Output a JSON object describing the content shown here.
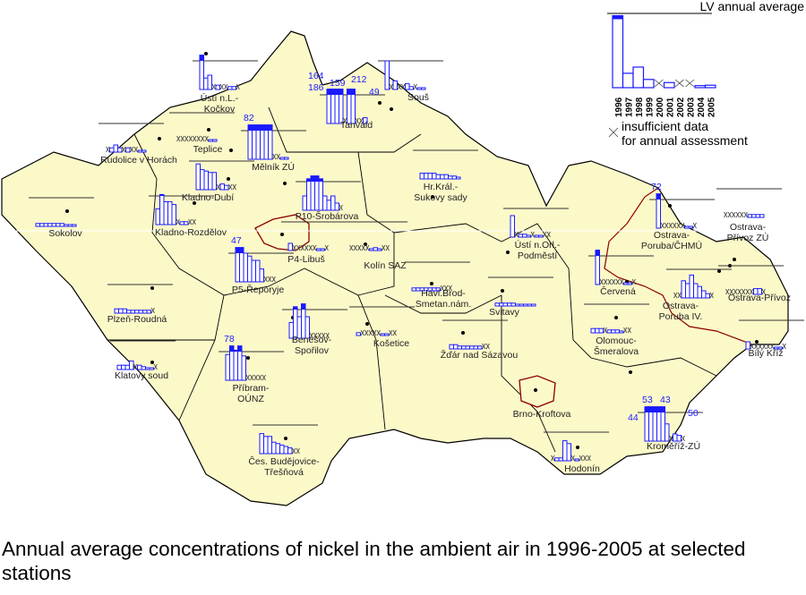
{
  "legend": {
    "lv_label": "LV annual average",
    "years": [
      "1996",
      "1997",
      "1998",
      "1999",
      "2000",
      "2001",
      "2002",
      "2003",
      "2004",
      "2005"
    ],
    "sample_values": [
      35,
      7,
      10,
      4,
      null,
      2.5,
      null,
      null,
      1,
      1.2
    ],
    "insufficient_label_1": "insufficient data",
    "insufficient_label_2": "for annual assessment"
  },
  "colors": {
    "land": "#fcf9c9",
    "bars": "#1a1aff",
    "border": "#000000",
    "city_border": "#8b0000"
  },
  "stations": [
    {
      "name": [
        "Ústí n.L.-",
        "Kočkov"
      ],
      "values": [
        26,
        8,
        10,
        null,
        3,
        null,
        null,
        2,
        2,
        null
      ],
      "labels": []
    },
    {
      "name": [
        "Rudolice v Horách"
      ],
      "values": [
        null,
        3,
        5,
        3,
        null,
        3,
        null,
        null,
        1,
        1
      ],
      "labels": []
    },
    {
      "name": [
        "Teplice"
      ],
      "values": [
        null,
        null,
        null,
        null,
        null,
        null,
        null,
        null,
        1,
        1
      ],
      "labels": []
    },
    {
      "name": [
        "Mělník ZÚ"
      ],
      "values": [
        82,
        24,
        27,
        40,
        40,
        25,
        null,
        null,
        1,
        1
      ],
      "labels": [
        "82"
      ]
    },
    {
      "name": [
        "Tanvald"
      ],
      "values": [
        164,
        186,
        159,
        28,
        null,
        212,
        49,
        null,
        null,
        4
      ],
      "labels": [
        "164",
        "186",
        "159",
        "212",
        "49"
      ]
    },
    {
      "name": [
        "Souš"
      ],
      "values": [
        20,
        null,
        6,
        null,
        null,
        4,
        2,
        null,
        1,
        1
      ],
      "labels": []
    },
    {
      "name": [
        "Kladno-Dubí"
      ],
      "values": [
        18,
        14,
        13,
        12,
        12,
        null,
        4,
        3,
        null,
        null
      ],
      "labels": []
    },
    {
      "name": [
        "Kladno-Rozdělov"
      ],
      "values": [
        11,
        21,
        16,
        16,
        14,
        null,
        2,
        2,
        null,
        null
      ],
      "labels": []
    },
    {
      "name": [
        "Sokolov"
      ],
      "values": [
        2,
        2,
        2,
        2,
        2,
        2,
        2,
        1,
        1,
        1
      ],
      "labels": []
    },
    {
      "name": [
        "P10-Šrobárova"
      ],
      "values": [
        10,
        22,
        27,
        38,
        22,
        10,
        7,
        10,
        5,
        null
      ],
      "labels": []
    },
    {
      "name": [
        "P5-Řeporyje"
      ],
      "values": [
        47,
        33,
        20,
        18,
        15,
        15,
        9,
        null,
        null,
        null
      ],
      "labels": [
        "47"
      ]
    },
    {
      "name": [
        "P4-Libuš"
      ],
      "values": [
        5,
        null,
        null,
        null,
        null,
        null,
        null,
        1,
        1,
        null
      ],
      "labels": []
    },
    {
      "name": [
        "Kolín SAZ"
      ],
      "values": [
        null,
        null,
        null,
        null,
        null,
        1,
        2,
        1,
        null,
        null
      ],
      "labels": []
    },
    {
      "name": [
        "Hr.Král.-",
        "Sukovy sady"
      ],
      "values": [
        4,
        4,
        4,
        4,
        3,
        3,
        3,
        2,
        2,
        1
      ],
      "labels": []
    },
    {
      "name": [
        "Ústí n.Orl.-",
        "Podměstí"
      ],
      "values": [
        15,
        null,
        2,
        2,
        1,
        null,
        1,
        1,
        null,
        null
      ],
      "labels": []
    },
    {
      "name": [
        "Plzeň-Roudná"
      ],
      "values": [
        3,
        3,
        3,
        2,
        2,
        2,
        2,
        2,
        2,
        null
      ],
      "labels": []
    },
    {
      "name": [
        "Klatovy soud"
      ],
      "values": [
        3,
        3,
        3,
        6,
        null,
        3,
        2,
        1,
        1,
        null
      ],
      "labels": []
    },
    {
      "name": [
        "Příbram-",
        "OÚNZ"
      ],
      "values": [
        18,
        78,
        21,
        24,
        17,
        null,
        null,
        null,
        null,
        null
      ],
      "labels": [
        "78"
      ]
    },
    {
      "name": [
        "Benešov-",
        "Spořilov"
      ],
      "values": [
        11,
        22,
        15,
        26,
        15,
        null,
        null,
        null,
        null,
        null
      ],
      "labels": []
    },
    {
      "name": [
        "Košetice"
      ],
      "values": [
        2,
        null,
        null,
        null,
        null,
        null,
        1,
        1,
        null,
        null
      ],
      "labels": []
    },
    {
      "name": [
        "Havl.Brod-",
        "Smetan.nám."
      ],
      "values": [
        2,
        2,
        2,
        2,
        2,
        2,
        2,
        null,
        null,
        null
      ],
      "labels": []
    },
    {
      "name": [
        "Svitavy"
      ],
      "values": [
        2,
        2,
        2,
        2,
        2,
        1,
        1,
        1,
        1,
        1
      ],
      "labels": []
    },
    {
      "name": [
        "Žďár nad Sázavou"
      ],
      "values": [
        3,
        3,
        2,
        2,
        2,
        2,
        2,
        2,
        null,
        null
      ],
      "labels": []
    },
    {
      "name": [
        "Čes. Budějovice-",
        "Třešňová"
      ],
      "values": [
        14,
        12,
        12,
        8,
        7,
        6,
        5,
        4,
        null,
        null
      ],
      "labels": []
    },
    {
      "name": [
        "Brno-Kroftova"
      ],
      "values": [],
      "labels": []
    },
    {
      "name": [
        "Hodonín"
      ],
      "values": [
        null,
        2,
        2,
        14,
        12,
        null,
        1,
        null,
        null,
        null
      ],
      "labels": []
    },
    {
      "name": [
        "Kroměříž-ZÚ"
      ],
      "values": [
        44,
        53,
        53,
        43,
        50,
        12,
        null,
        5,
        4,
        null
      ],
      "labels": [
        "44",
        "53",
        "43",
        "50"
      ]
    },
    {
      "name": [
        "Olomouc-",
        "Šmeralova"
      ],
      "values": [
        3,
        3,
        3,
        null,
        2,
        2,
        2,
        1,
        null,
        null
      ],
      "labels": []
    },
    {
      "name": [
        "Červená"
      ],
      "values": [
        30,
        null,
        null,
        null,
        null,
        null,
        null,
        1,
        1,
        null
      ],
      "labels": []
    },
    {
      "name": [
        "Ostrava-",
        "Poruba/ČHMÚ"
      ],
      "values": [
        72,
        null,
        null,
        null,
        null,
        null,
        null,
        1,
        1,
        null
      ],
      "labels": [
        "72"
      ]
    },
    {
      "name": [
        "Ostrava-",
        "Přívoz ZÚ"
      ],
      "values": [
        null,
        null,
        null,
        null,
        null,
        null,
        2,
        2,
        2,
        2
      ],
      "labels": []
    },
    {
      "name": [
        "Ostrava-",
        "Poruba IV."
      ],
      "values": [
        null,
        null,
        12,
        10,
        16,
        10,
        8,
        5,
        3,
        null
      ],
      "labels": []
    },
    {
      "name": [
        "Ostrava-Přívoz"
      ],
      "values": [
        null,
        null,
        null,
        null,
        null,
        null,
        null,
        4,
        4,
        null
      ],
      "labels": []
    },
    {
      "name": [
        "Bílý Kříž"
      ],
      "values": [
        5,
        null,
        null,
        null,
        null,
        null,
        null,
        1,
        1,
        null
      ],
      "labels": []
    }
  ],
  "caption": "Annual average concentrations of nickel in the ambient air in 1996-2005 at selected stations"
}
